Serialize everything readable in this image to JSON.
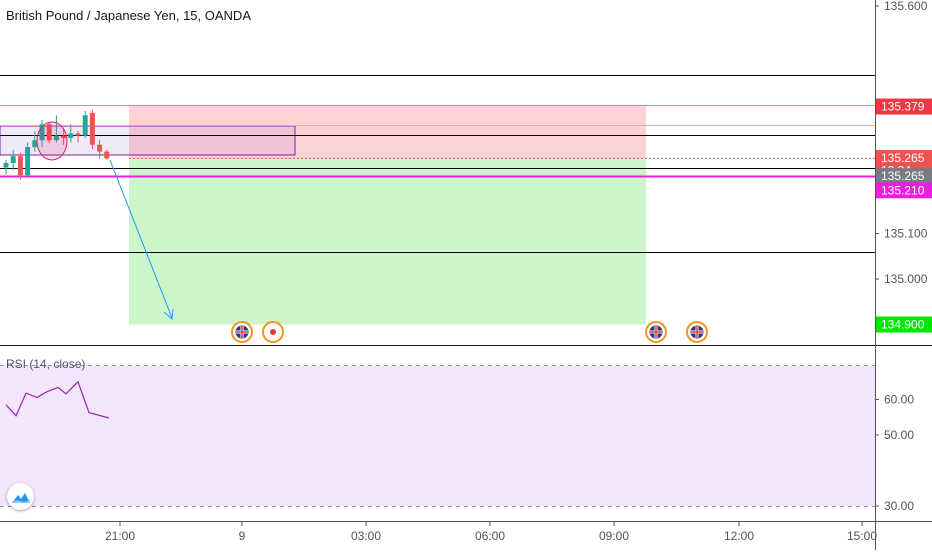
{
  "header": {
    "symbol_title": "British Pound / Japanese Yen, 15, OANDA"
  },
  "rsi": {
    "title": "RSI (14, close)",
    "levels": [
      "60.00",
      "50.00",
      "30.00"
    ],
    "values": [
      58.5,
      55.4,
      61.8,
      60.6,
      62.2,
      63.4,
      61.6,
      65.0,
      56.3,
      54.8
    ]
  },
  "colors": {
    "up": "#26a69a",
    "down": "#ef5350",
    "stop_zone": "#ffcdd2",
    "target_zone": "#ccf5cc",
    "rsi_line": "#9c27b0",
    "rsi_band": "#f3e5fc",
    "magenta": "#e91ee3",
    "orange": "#f7931a",
    "grey_tag": "#787b86",
    "target_tag": "#00e700"
  },
  "chart_data": {
    "type": "candlestick",
    "symbol": "British Pound / Japanese Yen",
    "interval": "15",
    "source": "OANDA",
    "y_axis_ticks": [
      "135.600",
      "135.100",
      "135.000"
    ],
    "x_axis_ticks": [
      "21:00",
      "9",
      "03:00",
      "06:00",
      "09:00",
      "12:00",
      "15:00"
    ],
    "candles": [
      {
        "o": 135.245,
        "h": 135.262,
        "l": 135.23,
        "c": 135.255
      },
      {
        "o": 135.255,
        "h": 135.284,
        "l": 135.24,
        "c": 135.27
      },
      {
        "o": 135.27,
        "h": 135.278,
        "l": 135.218,
        "c": 135.228
      },
      {
        "o": 135.228,
        "h": 135.3,
        "l": 135.225,
        "c": 135.29
      },
      {
        "o": 135.29,
        "h": 135.325,
        "l": 135.28,
        "c": 135.305
      },
      {
        "o": 135.305,
        "h": 135.35,
        "l": 135.29,
        "c": 135.34
      },
      {
        "o": 135.34,
        "h": 135.345,
        "l": 135.298,
        "c": 135.305
      },
      {
        "o": 135.305,
        "h": 135.36,
        "l": 135.3,
        "c": 135.315
      },
      {
        "o": 135.315,
        "h": 135.33,
        "l": 135.295,
        "c": 135.31
      },
      {
        "o": 135.31,
        "h": 135.34,
        "l": 135.3,
        "c": 135.32
      },
      {
        "o": 135.32,
        "h": 135.325,
        "l": 135.3,
        "c": 135.315
      },
      {
        "o": 135.315,
        "h": 135.37,
        "l": 135.31,
        "c": 135.36
      },
      {
        "o": 135.365,
        "h": 135.372,
        "l": 135.285,
        "c": 135.295
      },
      {
        "o": 135.295,
        "h": 135.305,
        "l": 135.265,
        "c": 135.28
      },
      {
        "o": 135.28,
        "h": 135.285,
        "l": 135.262,
        "c": 135.265
      }
    ],
    "price_tags": [
      {
        "label": "135.379",
        "price": 135.379,
        "color": "#f23645"
      },
      {
        "label": "135.265",
        "price": 135.266,
        "color": "#ef5350"
      },
      {
        "label": "12:34",
        "price": 135.238,
        "color": "#ef5350"
      },
      {
        "label": "135.265",
        "price": 135.226,
        "color": "#787b86"
      },
      {
        "label": "135.210",
        "price": 135.195,
        "color": "#e91ee3"
      },
      {
        "label": "134.900",
        "price": 134.9,
        "color": "#00e700"
      }
    ],
    "horizontal_lines": [
      {
        "price": 135.448,
        "color": "#000000"
      },
      {
        "price": 135.383,
        "color": "#f7931a"
      },
      {
        "price": 135.338,
        "color": "#f2c41b"
      },
      {
        "price": 135.317,
        "color": "#000000"
      },
      {
        "price": 135.245,
        "color": "#000000"
      },
      {
        "price": 135.226,
        "color": "#e91ee3"
      },
      {
        "price": 135.06,
        "color": "#000000"
      }
    ],
    "position": {
      "type": "short",
      "stop": 135.383,
      "entry": 135.265,
      "target": 134.9
    }
  }
}
